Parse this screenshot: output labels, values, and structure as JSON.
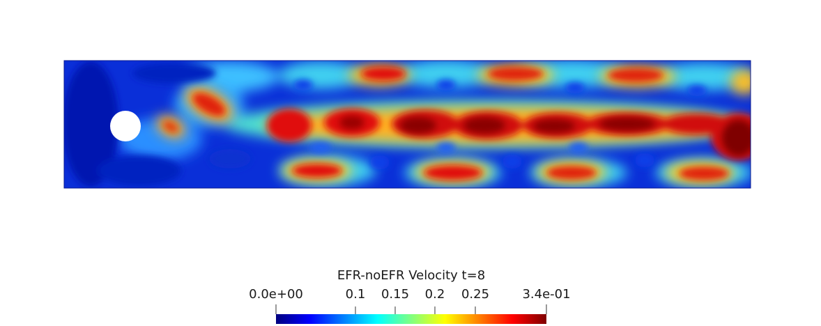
{
  "figure": {
    "colorbar": {
      "title": "EFR-noEFR Velocity t=8",
      "ticks": [
        {
          "value": 0.0,
          "label": "0.0e+00"
        },
        {
          "value": 0.1,
          "label": "0.1"
        },
        {
          "value": 0.15,
          "label": "0.15"
        },
        {
          "value": 0.2,
          "label": "0.2"
        },
        {
          "value": 0.25,
          "label": "0.25"
        },
        {
          "value": 0.34,
          "label": "3.4e-01"
        }
      ],
      "range": [
        0.0,
        0.34
      ],
      "colormap": "jet",
      "colors": [
        "#00007f",
        "#0000ff",
        "#0080ff",
        "#00ffff",
        "#80ff80",
        "#ffff00",
        "#ff8000",
        "#ff0000",
        "#7f0000"
      ]
    },
    "domain_colors": {
      "background_low": "#0a2fd8",
      "obstacle": "#ffffff"
    }
  }
}
